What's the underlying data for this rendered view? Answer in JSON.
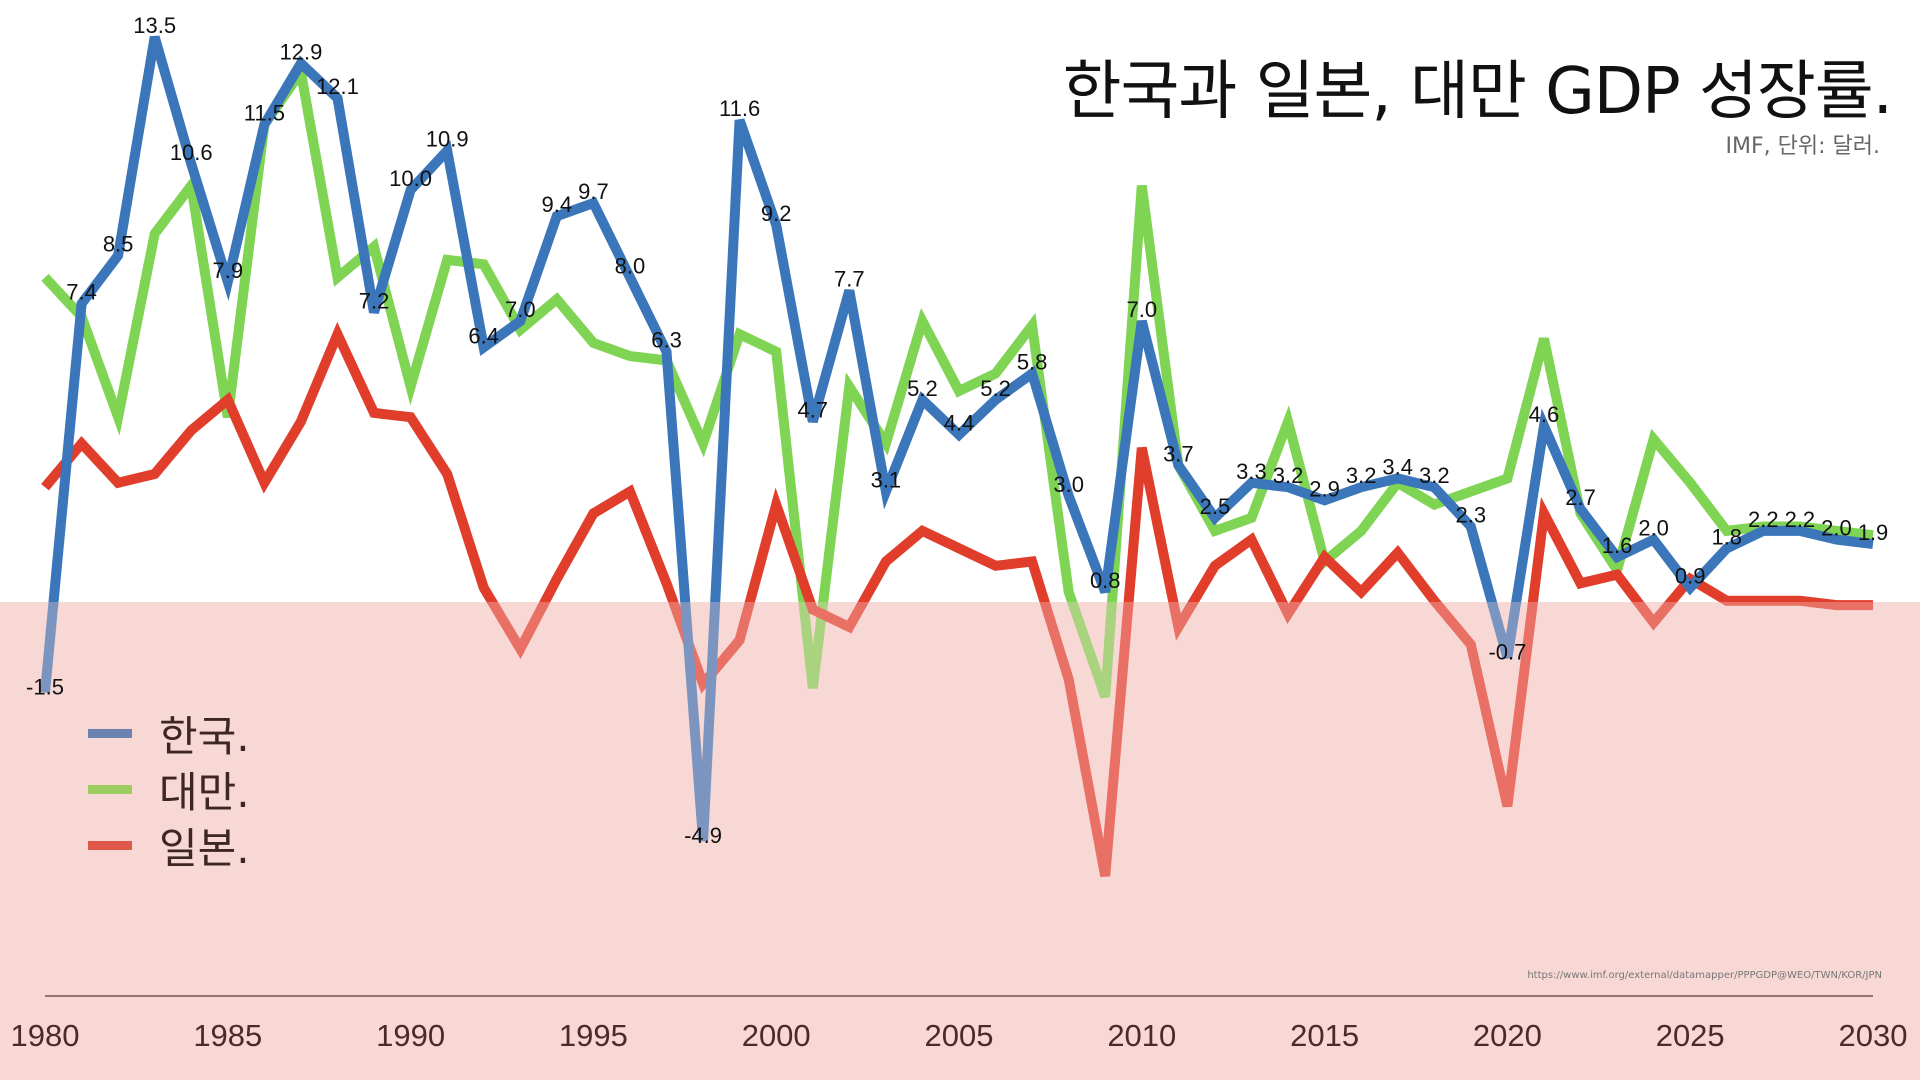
{
  "title": "한국과 일본, 대만 GDP 성장률.",
  "subtitle": "IMF, 단위: 달러.",
  "source": "https://www.imf.org/external/datamapper/PPPGDP@WEO/TWN/KOR/JPN",
  "legend": [
    {
      "label": "한국.",
      "color": "#3a76b9"
    },
    {
      "label": "대만.",
      "color": "#7fd454"
    },
    {
      "label": "일본.",
      "color": "#e03d2b"
    }
  ],
  "chart_data": {
    "type": "line",
    "title": "한국과 일본, 대만 GDP 성장률.",
    "xlabel": "",
    "ylabel": "",
    "xlim": [
      1980,
      2030
    ],
    "ylim": [
      -7,
      14
    ],
    "x_ticks": [
      1980,
      1985,
      1990,
      1995,
      2000,
      2005,
      2010,
      2015,
      2020,
      2025,
      2030
    ],
    "x": [
      1980,
      1981,
      1982,
      1983,
      1984,
      1985,
      1986,
      1987,
      1988,
      1989,
      1990,
      1991,
      1992,
      1993,
      1994,
      1995,
      1996,
      1997,
      1998,
      1999,
      2000,
      2001,
      2002,
      2003,
      2004,
      2005,
      2006,
      2007,
      2008,
      2009,
      2010,
      2011,
      2012,
      2013,
      2014,
      2015,
      2016,
      2017,
      2018,
      2019,
      2020,
      2021,
      2022,
      2023,
      2024,
      2025,
      2026,
      2027,
      2028,
      2029,
      2030
    ],
    "series": [
      {
        "name": "대만.",
        "color": "#7fd454",
        "labeled": false,
        "values": [
          8.0,
          7.1,
          4.8,
          9.0,
          10.1,
          4.8,
          11.5,
          12.7,
          8.0,
          8.7,
          5.5,
          8.4,
          8.3,
          6.8,
          7.5,
          6.5,
          6.2,
          6.1,
          4.2,
          6.7,
          6.3,
          -1.4,
          5.5,
          4.2,
          7.0,
          5.4,
          5.8,
          6.9,
          0.8,
          -1.6,
          10.1,
          3.7,
          2.2,
          2.5,
          4.7,
          1.5,
          2.2,
          3.3,
          2.8,
          3.1,
          3.4,
          6.6,
          2.6,
          1.3,
          4.3,
          3.3,
          2.2,
          2.3,
          2.3,
          2.2,
          2.1
        ]
      },
      {
        "name": "일본.",
        "color": "#e03d2b",
        "labeled": false,
        "values": [
          3.2,
          4.2,
          3.3,
          3.5,
          4.5,
          5.2,
          3.3,
          4.7,
          6.7,
          4.9,
          4.8,
          3.5,
          0.9,
          -0.5,
          1.1,
          2.6,
          3.1,
          1.0,
          -1.3,
          -0.3,
          2.8,
          0.4,
          0.0,
          1.5,
          2.2,
          1.8,
          1.4,
          1.5,
          -1.2,
          -5.7,
          4.1,
          0.0,
          1.4,
          2.0,
          0.3,
          1.6,
          0.8,
          1.7,
          0.6,
          -0.4,
          -4.1,
          2.6,
          1.0,
          1.2,
          0.1,
          1.1,
          0.6,
          0.6,
          0.6,
          0.5,
          0.5
        ]
      },
      {
        "name": "한국.",
        "color": "#3a76b9",
        "labeled": true,
        "values": [
          -1.5,
          7.4,
          8.5,
          13.5,
          10.6,
          7.9,
          11.5,
          12.9,
          12.1,
          7.2,
          10.0,
          10.9,
          6.4,
          7.0,
          9.4,
          9.7,
          8.0,
          6.3,
          -4.9,
          11.6,
          9.2,
          4.7,
          7.7,
          3.1,
          5.2,
          4.4,
          5.2,
          5.8,
          3.0,
          0.8,
          7.0,
          3.7,
          2.5,
          3.3,
          3.2,
          2.9,
          3.2,
          3.4,
          3.2,
          2.3,
          -0.7,
          4.6,
          2.7,
          1.6,
          2.0,
          0.9,
          1.8,
          2.2,
          2.2,
          2.0,
          1.9
        ]
      }
    ],
    "legend_position": "bottom-left",
    "grid": false
  }
}
